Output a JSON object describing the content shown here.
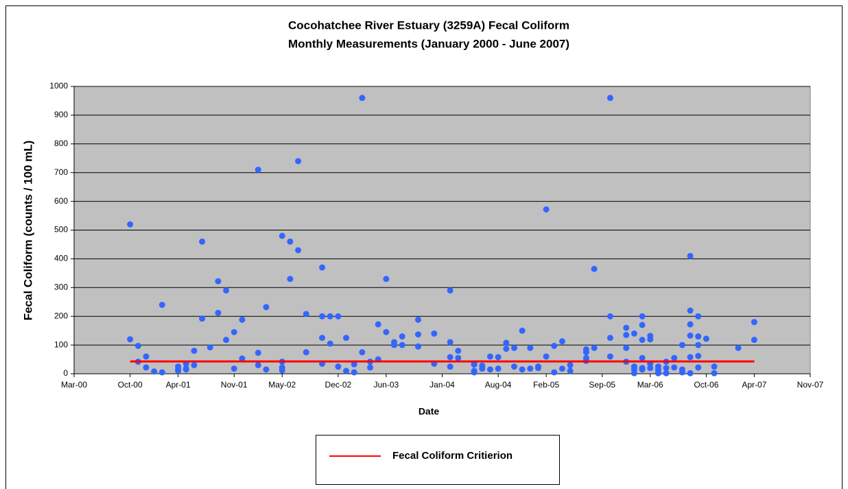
{
  "chart_data": {
    "type": "scatter",
    "title": "Cocohatchee River Estuary (3259A) Fecal Coliform",
    "subtitle": "Monthly Measurements (January 2000 - June 2007)",
    "x_label": "Date",
    "y_label": "Fecal Coliform (counts / 100 mL)",
    "xlim": [
      "2000-03",
      "2007-11"
    ],
    "xticks": [
      {
        "value": "2000-03",
        "label": "Mar-00"
      },
      {
        "value": "2000-10",
        "label": "Oct-00"
      },
      {
        "value": "2001-04",
        "label": "Apr-01"
      },
      {
        "value": "2001-11",
        "label": "Nov-01"
      },
      {
        "value": "2002-05",
        "label": "May-02"
      },
      {
        "value": "2002-12",
        "label": "Dec-02"
      },
      {
        "value": "2003-06",
        "label": "Jun-03"
      },
      {
        "value": "2004-01",
        "label": "Jan-04"
      },
      {
        "value": "2004-08",
        "label": "Aug-04"
      },
      {
        "value": "2005-02",
        "label": "Feb-05"
      },
      {
        "value": "2005-09",
        "label": "Sep-05"
      },
      {
        "value": "2006-03",
        "label": "Mar-06"
      },
      {
        "value": "2006-10",
        "label": "Oct-06"
      },
      {
        "value": "2007-04",
        "label": "Apr-07"
      },
      {
        "value": "2007-11",
        "label": "Nov-07"
      }
    ],
    "ylim": [
      0,
      1000
    ],
    "yticks": [
      0,
      100,
      200,
      300,
      400,
      500,
      600,
      700,
      800,
      900,
      1000
    ],
    "grid": true,
    "plot_background": "#c0c0c0",
    "legend": "bottom",
    "series": [
      {
        "color": "#3366ff",
        "x": [
          "2000-10",
          "2000-10",
          "2000-11",
          "2000-11",
          "2000-12",
          "2000-12",
          "2001-01",
          "2001-02",
          "2001-02",
          "2001-04",
          "2001-04",
          "2001-04",
          "2001-05",
          "2001-05",
          "2001-05",
          "2001-06",
          "2001-06",
          "2001-07",
          "2001-07",
          "2001-08",
          "2001-09",
          "2001-09",
          "2001-10",
          "2001-10",
          "2001-11",
          "2001-11",
          "2001-12",
          "2001-12",
          "2002-02",
          "2002-02",
          "2002-02",
          "2002-03",
          "2002-03",
          "2002-05",
          "2002-05",
          "2002-05",
          "2002-05",
          "2002-06",
          "2002-06",
          "2002-07",
          "2002-07",
          "2002-08",
          "2002-08",
          "2002-10",
          "2002-10",
          "2002-10",
          "2002-10",
          "2002-11",
          "2002-11",
          "2002-12",
          "2002-12",
          "2003-01",
          "2003-01",
          "2003-02",
          "2003-02",
          "2003-03",
          "2003-03",
          "2003-04",
          "2003-04",
          "2003-05",
          "2003-05",
          "2003-06",
          "2003-06",
          "2003-07",
          "2003-07",
          "2003-08",
          "2003-08",
          "2003-10",
          "2003-10",
          "2003-10",
          "2003-10",
          "2003-12",
          "2003-12",
          "2004-02",
          "2004-02",
          "2004-02",
          "2004-02",
          "2004-03",
          "2004-03",
          "2004-05",
          "2004-05",
          "2004-05",
          "2004-05",
          "2004-06",
          "2004-06",
          "2004-07",
          "2004-07",
          "2004-08",
          "2004-08",
          "2004-09",
          "2004-09",
          "2004-10",
          "2004-10",
          "2004-11",
          "2004-11",
          "2004-12",
          "2004-12",
          "2005-01",
          "2005-01",
          "2005-02",
          "2005-02",
          "2005-03",
          "2005-03",
          "2005-04",
          "2005-04",
          "2005-05",
          "2005-05",
          "2005-07",
          "2005-07",
          "2005-07",
          "2005-07",
          "2005-08",
          "2005-08",
          "2005-10",
          "2005-10",
          "2005-10",
          "2005-10",
          "2005-12",
          "2005-12",
          "2005-12",
          "2005-12",
          "2006-01",
          "2006-01",
          "2006-01",
          "2006-01",
          "2006-02",
          "2006-02",
          "2006-02",
          "2006-02",
          "2006-02",
          "2006-02",
          "2006-03",
          "2006-03",
          "2006-03",
          "2006-03",
          "2006-04",
          "2006-04",
          "2006-04",
          "2006-04",
          "2006-04",
          "2006-05",
          "2006-05",
          "2006-05",
          "2006-06",
          "2006-06",
          "2006-07",
          "2006-07",
          "2006-07",
          "2006-08",
          "2006-08",
          "2006-08",
          "2006-08",
          "2006-08",
          "2006-08",
          "2006-09",
          "2006-09",
          "2006-09",
          "2006-09",
          "2006-09",
          "2006-09",
          "2006-10",
          "2006-11",
          "2006-11",
          "2007-02",
          "2007-04",
          "2007-04"
        ],
        "values": [
          520,
          120,
          97,
          42,
          60,
          22,
          8,
          240,
          5,
          25,
          10,
          15,
          18,
          35,
          15,
          80,
          30,
          460,
          192,
          92,
          322,
          212,
          290,
          118,
          145,
          18,
          188,
          53,
          710,
          30,
          73,
          232,
          15,
          22,
          12,
          480,
          42,
          460,
          330,
          740,
          430,
          208,
          75,
          125,
          35,
          370,
          200,
          200,
          105,
          200,
          25,
          125,
          10,
          33,
          5,
          960,
          75,
          42,
          22,
          172,
          50,
          330,
          145,
          110,
          100,
          130,
          100,
          188,
          95,
          137,
          95,
          140,
          35,
          110,
          25,
          290,
          58,
          80,
          55,
          35,
          10,
          32,
          5,
          28,
          18,
          60,
          15,
          58,
          18,
          108,
          87,
          90,
          25,
          150,
          15,
          90,
          18,
          25,
          20,
          572,
          60,
          97,
          5,
          113,
          18,
          30,
          10,
          85,
          75,
          55,
          45,
          365,
          90,
          960,
          60,
          200,
          125,
          160,
          135,
          90,
          42,
          15,
          2,
          140,
          25,
          200,
          170,
          118,
          55,
          20,
          15,
          132,
          120,
          35,
          20,
          5,
          2,
          25,
          2,
          15,
          42,
          20,
          2,
          55,
          22,
          100,
          15,
          5,
          410,
          220,
          172,
          133,
          58,
          2,
          200,
          130,
          100,
          62,
          22,
          130,
          122,
          25,
          2,
          90,
          180,
          118
        ]
      },
      {
        "name": "Fecal Coliform Critierion",
        "color": "#ff0000",
        "mode": "line",
        "x": [
          "2000-10",
          "2007-04"
        ],
        "values": [
          43,
          43
        ]
      }
    ]
  }
}
